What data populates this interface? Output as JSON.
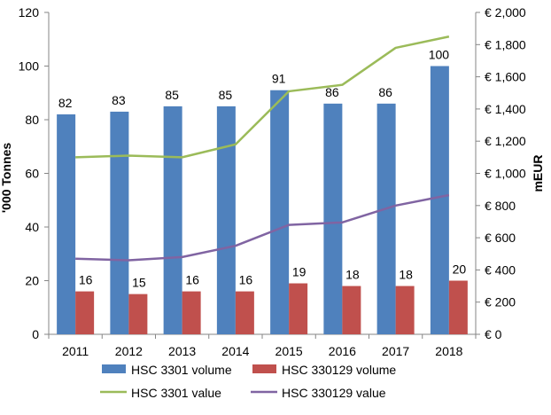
{
  "chart_data": {
    "type": "bar",
    "categories": [
      "2011",
      "2012",
      "2013",
      "2014",
      "2015",
      "2016",
      "2017",
      "2018"
    ],
    "y_left": {
      "label": "'000 Tonnes",
      "min": 0,
      "max": 120,
      "step": 20,
      "tick_labels": [
        "0",
        "20",
        "40",
        "60",
        "80",
        "100",
        "120"
      ]
    },
    "y_right": {
      "label": "mEUR",
      "min": 0,
      "max": 2000,
      "step": 200,
      "tick_labels": [
        "€ 0",
        "€ 200",
        "€ 400",
        "€ 600",
        "€ 800",
        "€ 1,000",
        "€ 1,200",
        "€ 1,400",
        "€ 1,600",
        "€ 1,800",
        "€ 2,000"
      ]
    },
    "grid": false,
    "legend_position": "bottom",
    "series": [
      {
        "name": "HSC 3301 volume",
        "kind": "bar",
        "axis": "left",
        "color": "#4F81BD",
        "values": [
          82,
          83,
          85,
          85,
          91,
          86,
          86,
          100
        ],
        "data_labels": [
          "82",
          "83",
          "85",
          "85",
          "91",
          "86",
          "86",
          "100"
        ]
      },
      {
        "name": "HSC 330129 volume",
        "kind": "bar",
        "axis": "left",
        "color": "#C0504D",
        "values": [
          16,
          15,
          16,
          16,
          19,
          18,
          18,
          20
        ],
        "data_labels": [
          "16",
          "15",
          "16",
          "16",
          "19",
          "18",
          "18",
          "20"
        ]
      },
      {
        "name": "HSC 3301 value",
        "kind": "line",
        "axis": "right",
        "color": "#9BBB59",
        "values": [
          1100,
          1110,
          1100,
          1180,
          1510,
          1550,
          1780,
          1850
        ]
      },
      {
        "name": "HSC 330129 value",
        "kind": "line",
        "axis": "right",
        "color": "#8064A2",
        "values": [
          470,
          460,
          480,
          550,
          680,
          695,
          800,
          865
        ]
      }
    ]
  }
}
